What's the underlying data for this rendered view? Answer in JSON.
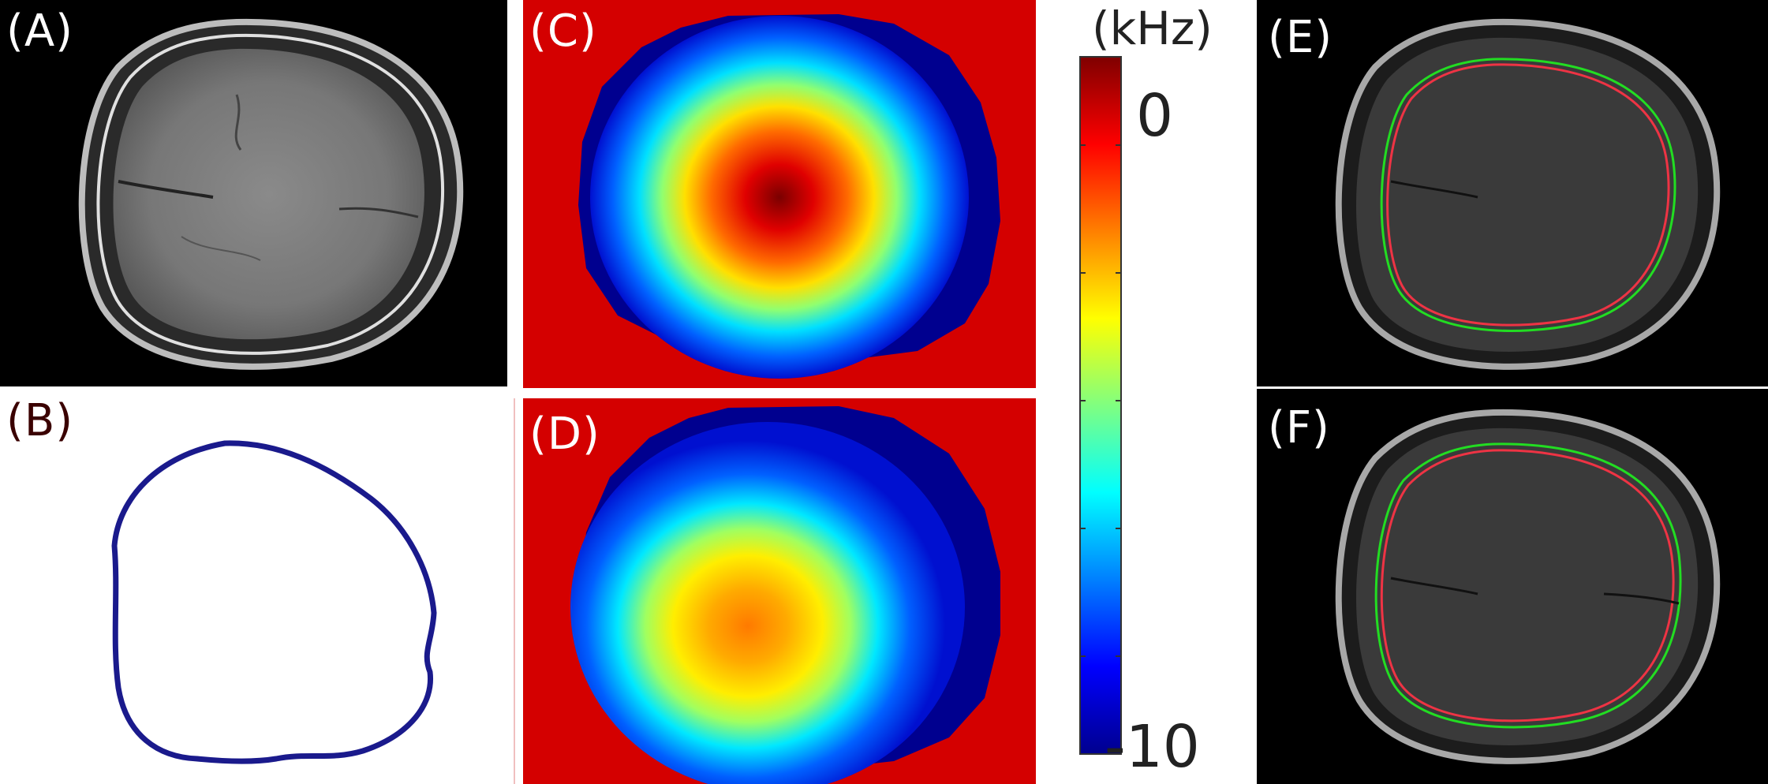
{
  "panels": {
    "a": {
      "label": "(A)"
    },
    "b": {
      "label": "(B)"
    },
    "c": {
      "label": "(C)"
    },
    "d": {
      "label": "(D)"
    },
    "e": {
      "label": "(E)"
    },
    "f": {
      "label": "(F)"
    }
  },
  "colorbar": {
    "unit": "(kHz)",
    "max_label": "0",
    "min_label": "-10",
    "range": [
      -10,
      0
    ],
    "colormap": "jet"
  },
  "colors": {
    "background_field": "#d40000",
    "contour_blue": "#1a1a8c",
    "contour_green": "#22dd22",
    "contour_red": "#ee3344"
  }
}
